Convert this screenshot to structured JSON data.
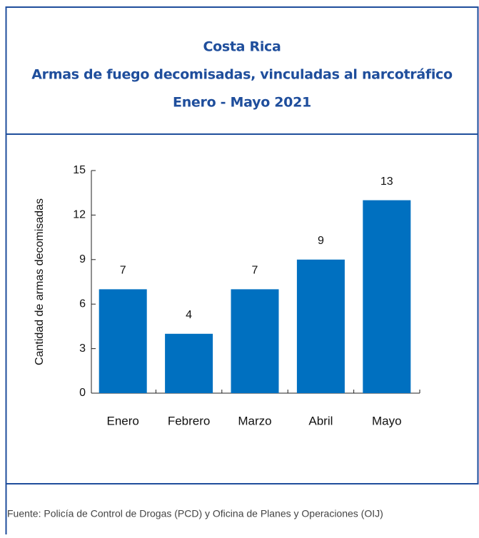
{
  "chart_data": {
    "type": "bar",
    "title": "Costa Rica",
    "subtitle": "Armas de fuego decomisadas, vinculadas al narcotráfico",
    "period": "Enero - Mayo 2021",
    "y_label": "Cantidad de armas decomisadas",
    "categories": [
      "Enero",
      "Febrero",
      "Marzo",
      "Abril",
      "Mayo"
    ],
    "values": [
      7,
      4,
      7,
      9,
      13
    ],
    "color": "#0070c0",
    "ylim": [
      0,
      15
    ],
    "yticks": [
      0,
      3,
      6,
      9,
      12,
      15
    ],
    "source": "Fuente: Policía de Control de Drogas (PCD) y Oficina de Planes y Operaciones (OIJ)"
  }
}
